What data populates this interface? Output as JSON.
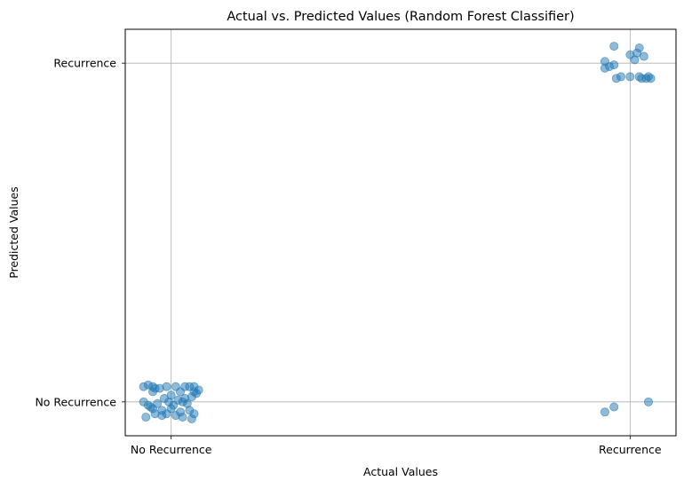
{
  "chart_data": {
    "type": "scatter",
    "title": "Actual vs. Predicted Values (Random Forest Classifier)",
    "xlabel": "Actual Values",
    "ylabel": "Predicted Values",
    "xtick_labels": [
      "No Recurrence",
      "Recurrence"
    ],
    "ytick_labels": [
      "No Recurrence",
      "Recurrence"
    ],
    "xlim": [
      -0.1,
      1.1
    ],
    "ylim": [
      -0.1,
      1.1
    ],
    "grid": true,
    "marker_color": "#1f77b4",
    "marker_alpha": 0.5,
    "points": [
      {
        "x": -0.06,
        "y": 0.045
      },
      {
        "x": -0.05,
        "y": 0.05
      },
      {
        "x": -0.04,
        "y": 0.045
      },
      {
        "x": -0.035,
        "y": 0.04
      },
      {
        "x": -0.04,
        "y": 0.03
      },
      {
        "x": -0.025,
        "y": 0.04
      },
      {
        "x": -0.01,
        "y": 0.045
      },
      {
        "x": 0.0,
        "y": 0.02
      },
      {
        "x": 0.01,
        "y": 0.045
      },
      {
        "x": 0.02,
        "y": 0.03
      },
      {
        "x": 0.03,
        "y": 0.045
      },
      {
        "x": 0.04,
        "y": 0.045
      },
      {
        "x": 0.05,
        "y": 0.03
      },
      {
        "x": 0.06,
        "y": 0.035
      },
      {
        "x": 0.05,
        "y": 0.045
      },
      {
        "x": 0.055,
        "y": 0.025
      },
      {
        "x": 0.045,
        "y": 0.015
      },
      {
        "x": -0.06,
        "y": 0.0
      },
      {
        "x": -0.05,
        "y": -0.01
      },
      {
        "x": -0.03,
        "y": -0.005
      },
      {
        "x": -0.015,
        "y": 0.01
      },
      {
        "x": -0.005,
        "y": 0.0
      },
      {
        "x": 0.005,
        "y": -0.01
      },
      {
        "x": 0.015,
        "y": 0.005
      },
      {
        "x": 0.025,
        "y": 0.0
      },
      {
        "x": 0.035,
        "y": -0.005
      },
      {
        "x": -0.04,
        "y": -0.02
      },
      {
        "x": -0.02,
        "y": -0.025
      },
      {
        "x": 0.0,
        "y": -0.02
      },
      {
        "x": 0.02,
        "y": -0.03
      },
      {
        "x": 0.04,
        "y": -0.025
      },
      {
        "x": -0.055,
        "y": -0.045
      },
      {
        "x": -0.035,
        "y": -0.035
      },
      {
        "x": -0.02,
        "y": -0.04
      },
      {
        "x": -0.01,
        "y": -0.035
      },
      {
        "x": 0.01,
        "y": -0.04
      },
      {
        "x": 0.025,
        "y": -0.045
      },
      {
        "x": 0.045,
        "y": -0.05
      },
      {
        "x": 0.05,
        "y": -0.035
      },
      {
        "x": -0.045,
        "y": -0.015
      },
      {
        "x": 0.03,
        "y": 0.01
      },
      {
        "x": 0.945,
        "y": -0.03
      },
      {
        "x": 0.965,
        "y": -0.015
      },
      {
        "x": 1.04,
        "y": 0.0
      },
      {
        "x": 0.965,
        "y": 1.05
      },
      {
        "x": 1.02,
        "y": 1.045
      },
      {
        "x": 1.0,
        "y": 1.025
      },
      {
        "x": 1.015,
        "y": 1.03
      },
      {
        "x": 1.03,
        "y": 1.02
      },
      {
        "x": 0.945,
        "y": 1.005
      },
      {
        "x": 1.01,
        "y": 1.01
      },
      {
        "x": 0.955,
        "y": 0.99
      },
      {
        "x": 0.965,
        "y": 0.995
      },
      {
        "x": 0.945,
        "y": 0.985
      },
      {
        "x": 0.97,
        "y": 0.955
      },
      {
        "x": 0.98,
        "y": 0.96
      },
      {
        "x": 1.0,
        "y": 0.96
      },
      {
        "x": 1.02,
        "y": 0.96
      },
      {
        "x": 1.035,
        "y": 0.955
      },
      {
        "x": 1.025,
        "y": 0.955
      },
      {
        "x": 1.04,
        "y": 0.96
      },
      {
        "x": 1.045,
        "y": 0.955
      }
    ]
  }
}
